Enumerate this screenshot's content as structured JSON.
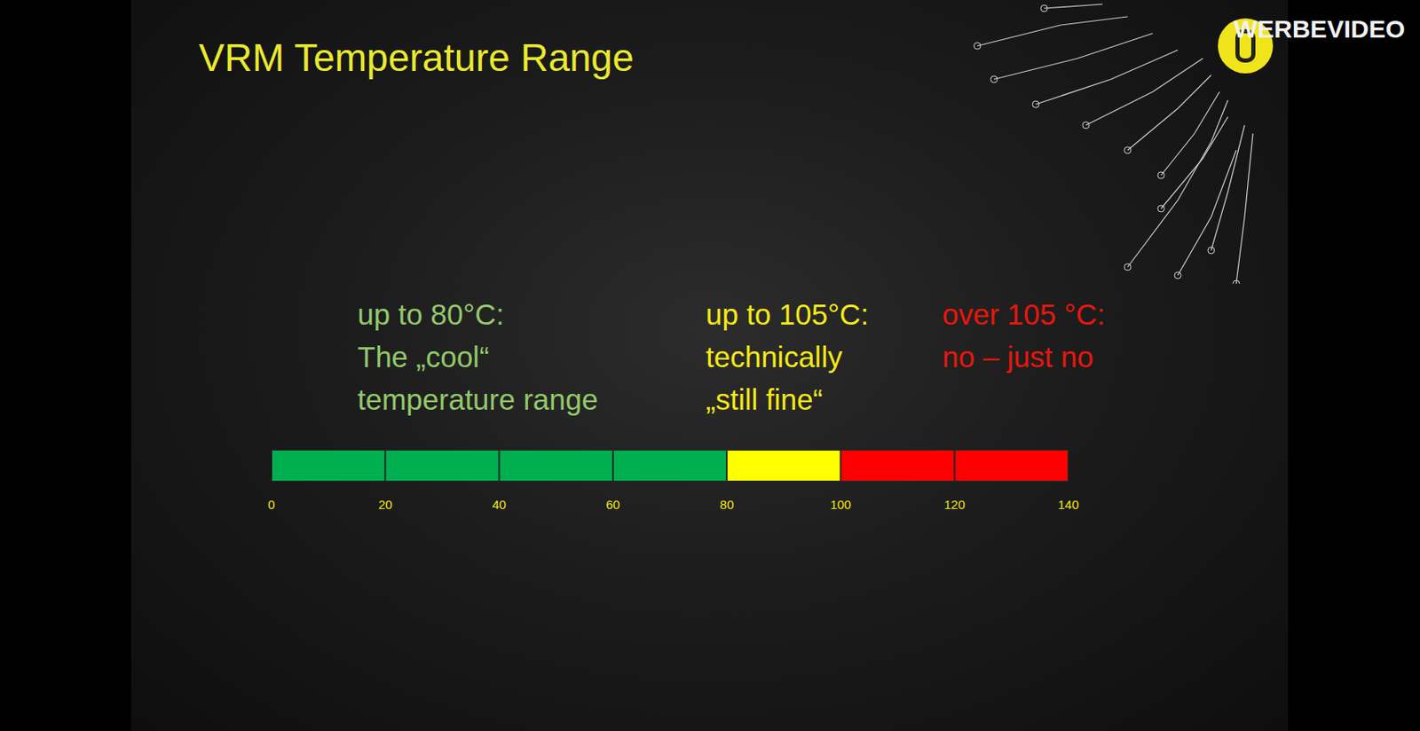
{
  "chart_data": {
    "type": "bar",
    "title": "VRM Temperature Range",
    "orientation": "horizontal",
    "stacked": true,
    "values": [
      20,
      20,
      20,
      20,
      20,
      20,
      20
    ],
    "colors": [
      "#00b050",
      "#00b050",
      "#00b050",
      "#00b050",
      "#ffff00",
      "#ff0000",
      "#ff0000"
    ],
    "xlim": [
      0,
      140
    ],
    "xticks": [
      0,
      20,
      40,
      60,
      80,
      100,
      120,
      140
    ],
    "grid": false,
    "tick_labels": "x",
    "annotations": [
      {
        "lines": [
          "up to 80°C:",
          "The „cool“",
          "temperature range"
        ],
        "color": "#92c96a"
      },
      {
        "lines": [
          "up to 105°C:",
          "technically",
          "„still fine“"
        ],
        "color": "#f5ea14"
      },
      {
        "lines": [
          "over 105 °C:",
          "no – just no"
        ],
        "color": "#e8160c"
      }
    ],
    "watermark": "WERBEVIDEO"
  }
}
